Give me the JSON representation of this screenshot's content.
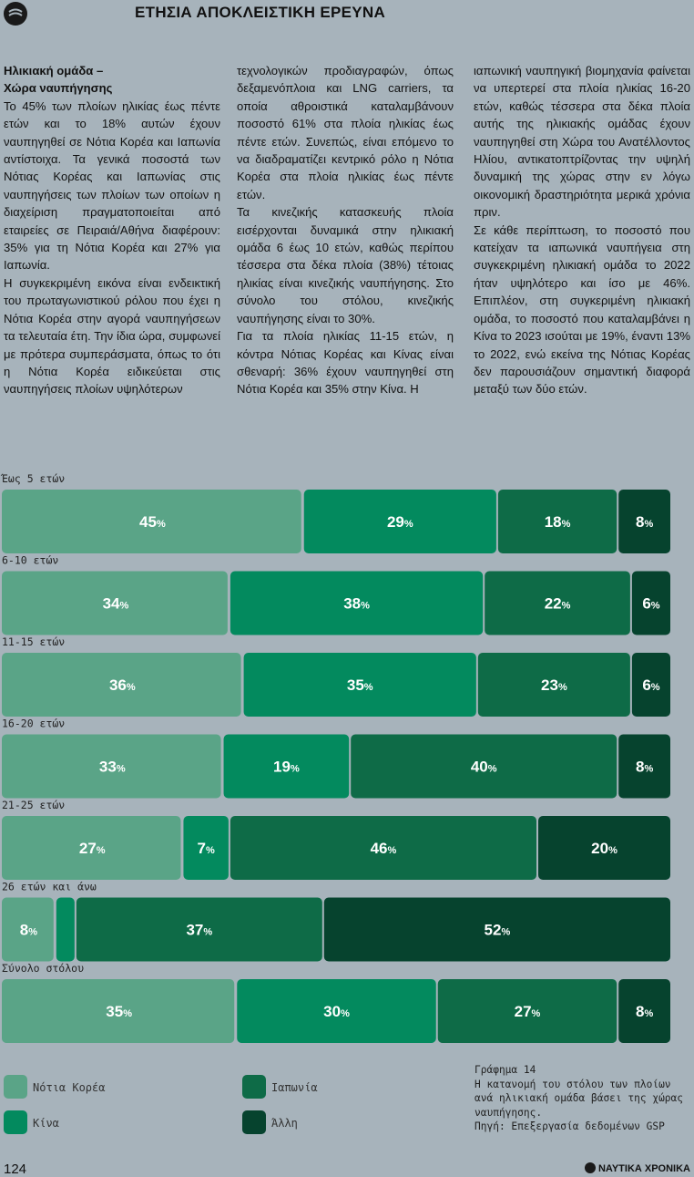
{
  "header": {
    "title": "ΕΤΗΣΙΑ ΑΠΟΚΛΕΙΣΤΙΚΗ ΕΡΕΥΝΑ",
    "logo_icon": "ship-wave-icon"
  },
  "article": {
    "col1": {
      "subheading_line1": "Ηλικιακή ομάδα –",
      "subheading_line2": "Χώρα ναυπήγησης",
      "p1": "Το 45% των πλοίων ηλικίας έως πέντε ετών και το 18% αυτών έχουν ναυπηγηθεί σε Νότια Κορέα και Ιαπωνία αντίστοιχα. Τα γενικά ποσοστά των Νότιας Κορέας και Ιαπωνίας στις ναυπηγήσεις των πλοίων των οποίων η διαχείριση πραγματοποιείται από εταιρείες σε Πειραιά/Αθήνα διαφέρουν: 35% για τη Νότια Κορέα και 27% για Ιαπωνία.",
      "p2": "Η συγκεκριμένη εικόνα είναι ενδεικτική του πρωταγωνιστικού ρόλου που έχει η Νότια Κορέα στην αγορά ναυπηγήσεων τα τελευταία έτη. Την ίδια ώρα, συμφωνεί με πρότερα συμπεράσματα, όπως το ότι η Νότια Κορέα ειδικεύεται στις ναυπηγήσεις πλοίων υψηλότερων"
    },
    "col2": {
      "p1": "τεχνολογικών προδιαγραφών, όπως δεξαμενόπλοια και LNG carriers, τα οποία αθροιστικά καταλαμβάνουν ποσοστό 61% στα πλοία ηλικίας έως πέντε ετών. Συνεπώς, είναι επόμενο το να διαδραματίζει κεντρικό ρόλο η Νότια Κορέα στα πλοία ηλικίας έως πέντε ετών.",
      "p2": "Τα κινεζικής κατασκευής πλοία εισέρχονται δυναμικά στην ηλικιακή ομάδα 6 έως 10 ετών, καθώς περίπου τέσσερα στα δέκα πλοία (38%) τέτοιας ηλικίας είναι κινεζικής ναυπήγησης. Στο σύνολο του στόλου, κινεζικής ναυπήγησης είναι το 30%.",
      "p3": "Για τα πλοία ηλικίας 11-15 ετών, η κόντρα Νότιας Κορέας και Κίνας είναι σθεναρή: 36% έχουν ναυπηγηθεί στη Νότια Κορέα και 35% στην Κίνα. Η"
    },
    "col3": {
      "p1": "ιαπωνική ναυπηγική βιομηχανία φαίνεται να υπερτερεί στα πλοία ηλικίας 16-20 ετών, καθώς τέσσερα στα δέκα πλοία αυτής της ηλικιακής ομάδας έχουν ναυπηγηθεί στη Χώρα του Ανατέλλοντος Ηλίου, αντικατοπτρίζοντας την υψηλή δυναμική της χώρας στην εν λόγω οικονομική δραστηριότητα μερικά χρόνια πριν.",
      "p2": "Σε κάθε περίπτωση, το ποσοστό που κατείχαν τα ιαπωνικά ναυπήγεια στη συγκεκριμένη ηλικιακή ομάδα το 2022 ήταν υψηλότερο και ίσο με 46%. Επιπλέον, στη συγκεριμένη ηλικιακή ομάδα, το ποσοστό που καταλαμβάνει η Κίνα το 2023 ισούται με 19%, έναντι 13% το 2022, ενώ εκείνα της Νότιας Κορέας δεν παρουσιάζουν σημαντική διαφορά μεταξύ των δύο ετών."
    }
  },
  "chart_data": {
    "type": "bar",
    "stacked": true,
    "orientation": "horizontal",
    "categories": [
      "Έως 5 ετών",
      "6-10 ετών",
      "11-15 ετών",
      "16-20 ετών",
      "21-25 ετών",
      "26 ετών και άνω",
      "Σύνολο στόλου"
    ],
    "series": [
      {
        "name": "Νότια Κορέα",
        "color": "#5aa487",
        "values": [
          45,
          34,
          36,
          33,
          27,
          8,
          35
        ],
        "labels": [
          "45",
          "34",
          "36",
          "33",
          "27",
          "8",
          "35"
        ]
      },
      {
        "name": "Κίνα",
        "color": "#038a5e",
        "values": [
          29,
          38,
          35,
          19,
          7,
          3,
          30
        ],
        "labels": [
          "29",
          "38",
          "35",
          "19",
          "7",
          "",
          "30"
        ]
      },
      {
        "name": "Ιαπωνία",
        "color": "#0e6b47",
        "values": [
          18,
          22,
          23,
          40,
          46,
          37,
          27
        ],
        "labels": [
          "18",
          "22",
          "23",
          "40",
          "46",
          "37",
          "27"
        ]
      },
      {
        "name": "Άλλη",
        "color": "#06432e",
        "values": [
          8,
          6,
          6,
          8,
          20,
          52,
          8
        ],
        "labels": [
          "8",
          "6",
          "6",
          "8",
          "20",
          "52",
          "8"
        ]
      }
    ],
    "unit": "%"
  },
  "legend": [
    {
      "name": "Νότια Κορέα",
      "color": "#5aa487"
    },
    {
      "name": "Ιαπωνία",
      "color": "#0e6b47"
    },
    {
      "name": "Κίνα",
      "color": "#038a5e"
    },
    {
      "name": "Άλλη",
      "color": "#06432e"
    }
  ],
  "caption": {
    "line1": "Γράφημα 14",
    "line2": "Η κατανομή του στόλου των πλοίων ανά ηλικιακή ομάδα βάσει της χώρας ναυπήγησης.",
    "line3": "Πηγή: Επεξεργασία δεδομένων GSP"
  },
  "footer": {
    "page_number": "124",
    "brand": "ΝΑΥΤΙΚΑ ΧΡΟΝΙΚΑ"
  }
}
